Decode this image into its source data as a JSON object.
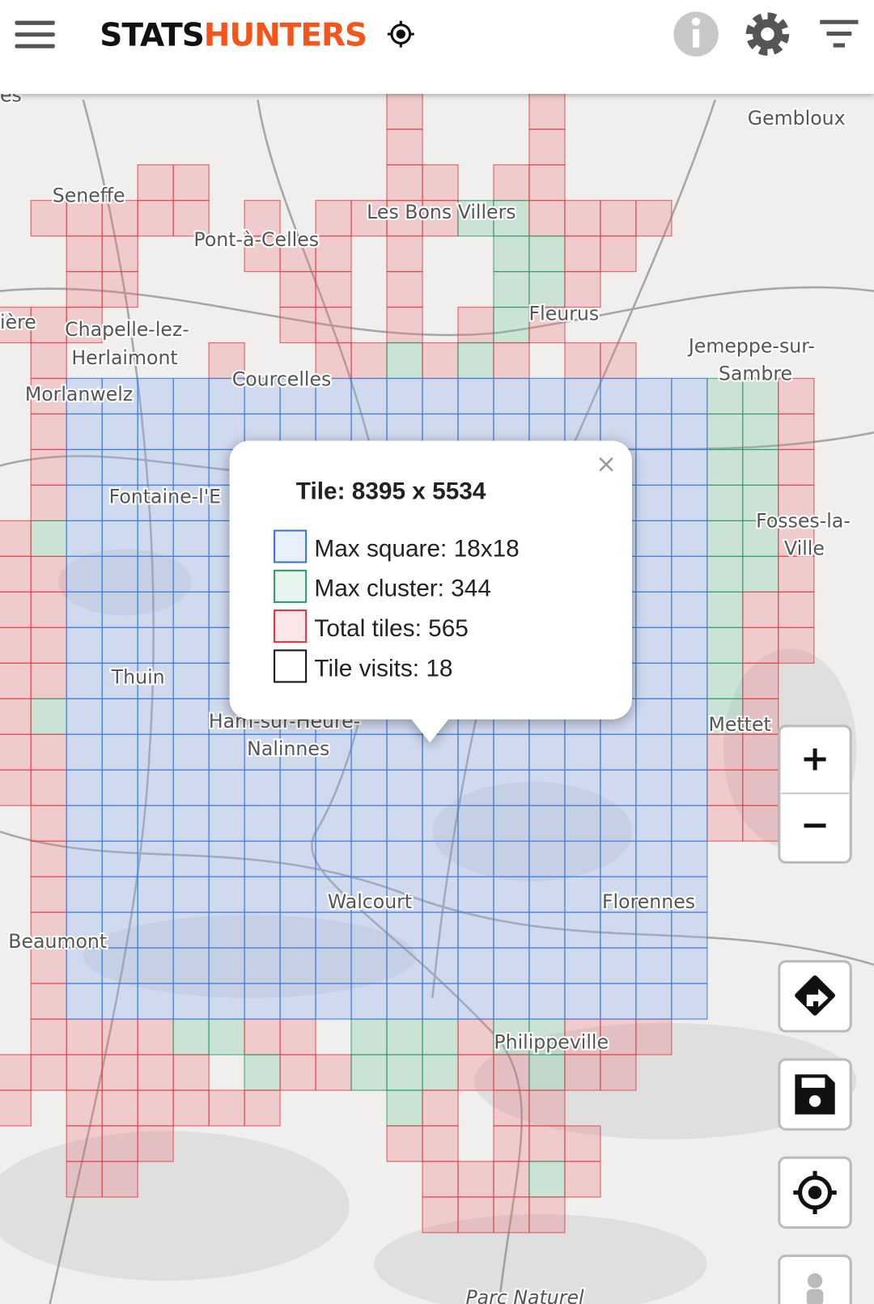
{
  "header": {
    "brand_part1": "STATS",
    "brand_part2": "HUNTERS"
  },
  "map": {
    "places": [
      "Gembloux",
      "Seneffe",
      "Les Bons Villers",
      "Pont-à-Celles",
      "Fleurus",
      "ière",
      "Chapelle-lez-",
      "Herlaimont",
      "Jemeppe-sur-",
      "Sambre",
      "Courcelles",
      "Morlanwelz",
      "Fontaine-l'E",
      "Fosses-la-",
      "Ville",
      "Thuin",
      "Ham-sur-Heure-",
      "Nalinnes",
      "Mettet",
      "Walcourt",
      "Florennes",
      "Beaumont",
      "Philippeville",
      "Parc Naturel",
      "es"
    ]
  },
  "popup": {
    "close": "×",
    "title": "Tile: 8395 x 5534",
    "items": [
      "Max square: 18x18",
      "Max cluster: 344",
      "Total tiles: 565",
      "Tile visits: 18"
    ]
  },
  "controls": {
    "zoom_in": "+",
    "zoom_out": "−"
  }
}
